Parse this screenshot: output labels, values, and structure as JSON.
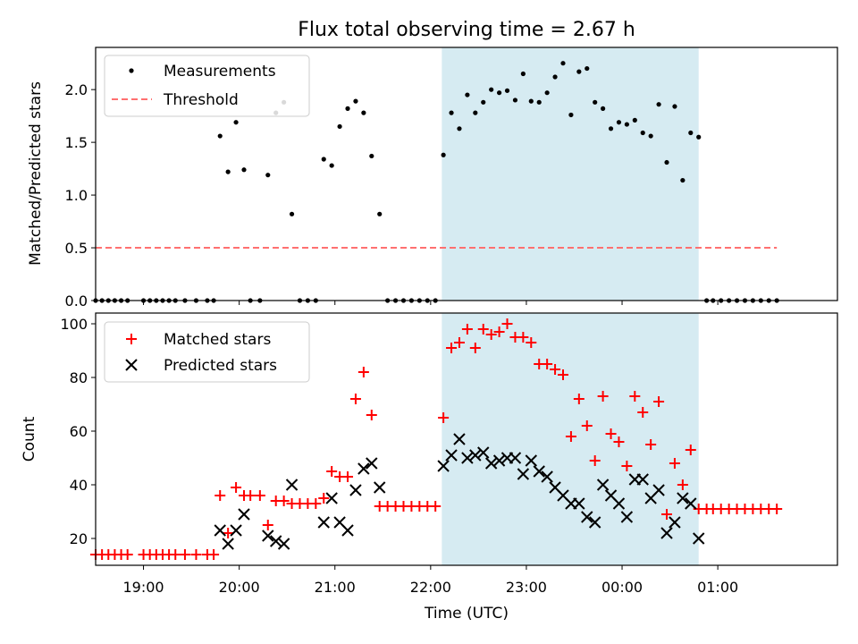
{
  "chart_data": {
    "title": "Flux total observing time = 2.67 h",
    "xlabel": "Time (UTC)",
    "x_axis": {
      "min": "18:30",
      "max": "02:15",
      "ticks": [
        "19:00",
        "20:00",
        "21:00",
        "22:00",
        "23:00",
        "00:00",
        "01:00"
      ]
    },
    "shaded_span": {
      "start": "22:07",
      "end": "00:48",
      "color": "#add8e6"
    },
    "panels": [
      {
        "type": "scatter",
        "ylabel": "Matched/Predicted stars",
        "ylim": [
          0,
          2.4
        ],
        "yticks": [
          "0.0",
          "0.5",
          "1.0",
          "1.5",
          "2.0"
        ],
        "legend": {
          "placement": "top-left"
        },
        "series": [
          {
            "name": "Measurements",
            "marker": "dot",
            "color": "#000000",
            "points": [
              [
                "18:30",
                0
              ],
              [
                "18:34",
                0
              ],
              [
                "18:38",
                0
              ],
              [
                "18:42",
                0
              ],
              [
                "18:46",
                0
              ],
              [
                "18:50",
                0
              ],
              [
                "19:00",
                0
              ],
              [
                "19:04",
                0
              ],
              [
                "19:08",
                0
              ],
              [
                "19:12",
                0
              ],
              [
                "19:16",
                0
              ],
              [
                "19:20",
                0
              ],
              [
                "19:26",
                0
              ],
              [
                "19:33",
                0
              ],
              [
                "19:40",
                0
              ],
              [
                "19:44",
                0
              ],
              [
                "19:48",
                1.56
              ],
              [
                "19:53",
                1.22
              ],
              [
                "19:58",
                1.69
              ],
              [
                "20:03",
                1.24
              ],
              [
                "20:07",
                0
              ],
              [
                "20:13",
                0
              ],
              [
                "20:18",
                1.19
              ],
              [
                "20:23",
                1.78
              ],
              [
                "20:28",
                1.88
              ],
              [
                "20:33",
                0.82
              ],
              [
                "20:38",
                0
              ],
              [
                "20:43",
                0
              ],
              [
                "20:48",
                0
              ],
              [
                "20:53",
                1.34
              ],
              [
                "20:58",
                1.28
              ],
              [
                "21:03",
                1.65
              ],
              [
                "21:08",
                1.82
              ],
              [
                "21:13",
                1.89
              ],
              [
                "21:18",
                1.78
              ],
              [
                "21:23",
                1.37
              ],
              [
                "21:28",
                0.82
              ],
              [
                "21:33",
                0
              ],
              [
                "21:38",
                0
              ],
              [
                "21:43",
                0
              ],
              [
                "21:48",
                0
              ],
              [
                "21:53",
                0
              ],
              [
                "21:58",
                0
              ],
              [
                "22:03",
                0
              ],
              [
                "22:08",
                1.38
              ],
              [
                "22:13",
                1.78
              ],
              [
                "22:18",
                1.63
              ],
              [
                "22:23",
                1.95
              ],
              [
                "22:28",
                1.78
              ],
              [
                "22:33",
                1.88
              ],
              [
                "22:38",
                2.0
              ],
              [
                "22:43",
                1.97
              ],
              [
                "22:48",
                1.99
              ],
              [
                "22:53",
                1.9
              ],
              [
                "22:58",
                2.15
              ],
              [
                "23:03",
                1.89
              ],
              [
                "23:08",
                1.88
              ],
              [
                "23:13",
                1.97
              ],
              [
                "23:18",
                2.12
              ],
              [
                "23:23",
                2.25
              ],
              [
                "23:28",
                1.76
              ],
              [
                "23:33",
                2.17
              ],
              [
                "23:38",
                2.2
              ],
              [
                "23:43",
                1.88
              ],
              [
                "23:48",
                1.82
              ],
              [
                "23:53",
                1.63
              ],
              [
                "23:58",
                1.69
              ],
              [
                "00:03",
                1.67
              ],
              [
                "00:08",
                1.71
              ],
              [
                "00:13",
                1.59
              ],
              [
                "00:18",
                1.56
              ],
              [
                "00:23",
                1.86
              ],
              [
                "00:28",
                1.31
              ],
              [
                "00:33",
                1.84
              ],
              [
                "00:38",
                1.14
              ],
              [
                "00:43",
                1.59
              ],
              [
                "00:48",
                1.55
              ],
              [
                "00:53",
                0
              ],
              [
                "00:57",
                0
              ],
              [
                "01:02",
                0
              ],
              [
                "01:07",
                0
              ],
              [
                "01:12",
                0
              ],
              [
                "01:17",
                0
              ],
              [
                "01:22",
                0
              ],
              [
                "01:27",
                0
              ],
              [
                "01:32",
                0
              ],
              [
                "01:37",
                0
              ]
            ]
          },
          {
            "name": "Threshold",
            "marker": "dashed-line",
            "color": "#ff7070",
            "points": [
              [
                "18:30",
                0.5
              ],
              [
                "01:37",
                0.5
              ]
            ]
          }
        ]
      },
      {
        "type": "scatter",
        "ylabel": "Count",
        "ylim": [
          10,
          104
        ],
        "yticks": [
          "20",
          "40",
          "60",
          "80",
          "100"
        ],
        "legend": {
          "placement": "top-left"
        },
        "series": [
          {
            "name": "Matched stars",
            "marker": "plus",
            "color": "#ff0000",
            "points": [
              [
                "18:30",
                14
              ],
              [
                "18:34",
                14
              ],
              [
                "18:38",
                14
              ],
              [
                "18:42",
                14
              ],
              [
                "18:46",
                14
              ],
              [
                "18:50",
                14
              ],
              [
                "19:00",
                14
              ],
              [
                "19:04",
                14
              ],
              [
                "19:08",
                14
              ],
              [
                "19:12",
                14
              ],
              [
                "19:16",
                14
              ],
              [
                "19:20",
                14
              ],
              [
                "19:26",
                14
              ],
              [
                "19:33",
                14
              ],
              [
                "19:40",
                14
              ],
              [
                "19:44",
                14
              ],
              [
                "19:48",
                36
              ],
              [
                "19:53",
                22
              ],
              [
                "19:58",
                39
              ],
              [
                "20:03",
                36
              ],
              [
                "20:07",
                36
              ],
              [
                "20:13",
                36
              ],
              [
                "20:18",
                25
              ],
              [
                "20:23",
                34
              ],
              [
                "20:28",
                34
              ],
              [
                "20:33",
                33
              ],
              [
                "20:38",
                33
              ],
              [
                "20:43",
                33
              ],
              [
                "20:48",
                33
              ],
              [
                "20:53",
                35
              ],
              [
                "20:58",
                45
              ],
              [
                "21:03",
                43
              ],
              [
                "21:08",
                43
              ],
              [
                "21:13",
                72
              ],
              [
                "21:18",
                82
              ],
              [
                "21:23",
                66
              ],
              [
                "21:28",
                32
              ],
              [
                "21:33",
                32
              ],
              [
                "21:38",
                32
              ],
              [
                "21:43",
                32
              ],
              [
                "21:48",
                32
              ],
              [
                "21:53",
                32
              ],
              [
                "21:58",
                32
              ],
              [
                "22:03",
                32
              ],
              [
                "22:08",
                65
              ],
              [
                "22:13",
                91
              ],
              [
                "22:18",
                93
              ],
              [
                "22:23",
                98
              ],
              [
                "22:28",
                91
              ],
              [
                "22:33",
                98
              ],
              [
                "22:38",
                96
              ],
              [
                "22:43",
                97
              ],
              [
                "22:48",
                100
              ],
              [
                "22:53",
                95
              ],
              [
                "22:58",
                95
              ],
              [
                "23:03",
                93
              ],
              [
                "23:08",
                85
              ],
              [
                "23:13",
                85
              ],
              [
                "23:18",
                83
              ],
              [
                "23:23",
                81
              ],
              [
                "23:28",
                58
              ],
              [
                "23:33",
                72
              ],
              [
                "23:38",
                62
              ],
              [
                "23:43",
                49
              ],
              [
                "23:48",
                73
              ],
              [
                "23:53",
                59
              ],
              [
                "23:58",
                56
              ],
              [
                "00:03",
                47
              ],
              [
                "00:08",
                73
              ],
              [
                "00:13",
                67
              ],
              [
                "00:18",
                55
              ],
              [
                "00:23",
                71
              ],
              [
                "00:28",
                29
              ],
              [
                "00:33",
                48
              ],
              [
                "00:38",
                40
              ],
              [
                "00:43",
                53
              ],
              [
                "00:48",
                31
              ],
              [
                "00:53",
                31
              ],
              [
                "00:57",
                31
              ],
              [
                "01:02",
                31
              ],
              [
                "01:07",
                31
              ],
              [
                "01:12",
                31
              ],
              [
                "01:17",
                31
              ],
              [
                "01:22",
                31
              ],
              [
                "01:27",
                31
              ],
              [
                "01:32",
                31
              ],
              [
                "01:37",
                31
              ]
            ]
          },
          {
            "name": "Predicted stars",
            "marker": "x",
            "color": "#000000",
            "points": [
              [
                "19:48",
                23
              ],
              [
                "19:53",
                18
              ],
              [
                "19:58",
                23
              ],
              [
                "20:03",
                29
              ],
              [
                "20:18",
                21
              ],
              [
                "20:23",
                19
              ],
              [
                "20:28",
                18
              ],
              [
                "20:33",
                40
              ],
              [
                "20:53",
                26
              ],
              [
                "20:58",
                35
              ],
              [
                "21:03",
                26
              ],
              [
                "21:08",
                23
              ],
              [
                "21:13",
                38
              ],
              [
                "21:18",
                46
              ],
              [
                "21:23",
                48
              ],
              [
                "21:28",
                39
              ],
              [
                "22:08",
                47
              ],
              [
                "22:13",
                51
              ],
              [
                "22:18",
                57
              ],
              [
                "22:23",
                50
              ],
              [
                "22:28",
                51
              ],
              [
                "22:33",
                52
              ],
              [
                "22:38",
                48
              ],
              [
                "22:43",
                49
              ],
              [
                "22:48",
                50
              ],
              [
                "22:53",
                50
              ],
              [
                "22:58",
                44
              ],
              [
                "23:03",
                49
              ],
              [
                "23:08",
                45
              ],
              [
                "23:13",
                43
              ],
              [
                "23:18",
                39
              ],
              [
                "23:23",
                36
              ],
              [
                "23:28",
                33
              ],
              [
                "23:33",
                33
              ],
              [
                "23:38",
                28
              ],
              [
                "23:43",
                26
              ],
              [
                "23:48",
                40
              ],
              [
                "23:53",
                36
              ],
              [
                "23:58",
                33
              ],
              [
                "00:03",
                28
              ],
              [
                "00:08",
                42
              ],
              [
                "00:13",
                42
              ],
              [
                "00:18",
                35
              ],
              [
                "00:23",
                38
              ],
              [
                "00:28",
                22
              ],
              [
                "00:33",
                26
              ],
              [
                "00:38",
                35
              ],
              [
                "00:43",
                33
              ],
              [
                "00:48",
                20
              ]
            ]
          }
        ]
      }
    ]
  }
}
